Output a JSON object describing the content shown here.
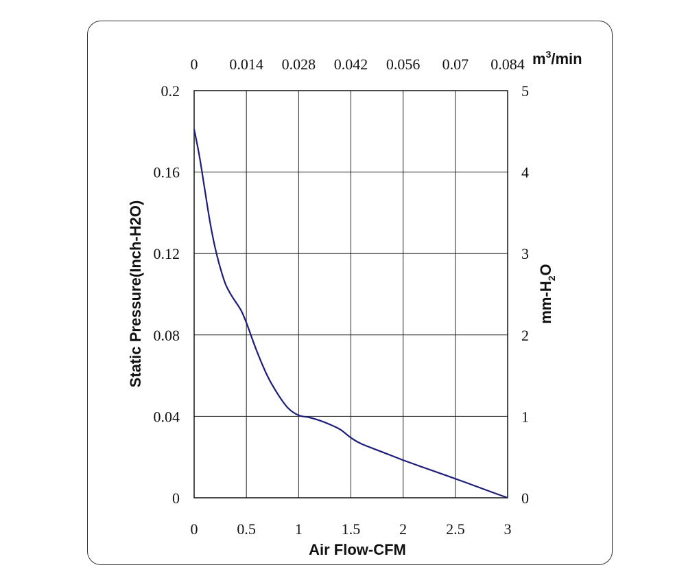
{
  "chart_data": {
    "type": "line",
    "xlabel": "Air Flow-CFM",
    "ylabel": "Static Pressure(Inch-H2O)",
    "xlim": [
      0,
      3
    ],
    "ylim": [
      0,
      0.2
    ],
    "xticks": [
      "0",
      "0.5",
      "1",
      "1.5",
      "2",
      "2.5",
      "3"
    ],
    "yticks": [
      "0",
      "0.04",
      "0.08",
      "0.12",
      "0.16",
      "0.2"
    ],
    "x2label_base": "m",
    "x2label_sup": "3",
    "x2label_rest": "/min",
    "x2lim": [
      0,
      0.084
    ],
    "x2ticks": [
      "0",
      "0.014",
      "0.028",
      "0.042",
      "0.056",
      "0.07",
      "0.084"
    ],
    "y2label_base": "mm-H",
    "y2label_sub": "2",
    "y2label_rest": "O",
    "y2lim": [
      0,
      5
    ],
    "y2ticks": [
      "0",
      "1",
      "2",
      "3",
      "4",
      "5"
    ],
    "grid": true,
    "series": [
      {
        "color": "#1c1c7a",
        "x": [
          0,
          0.05,
          0.1,
          0.15,
          0.2,
          0.25,
          0.3,
          0.35,
          0.4,
          0.45,
          0.5,
          0.6,
          0.7,
          0.8,
          0.9,
          1.0,
          1.1,
          1.2,
          1.3,
          1.4,
          1.5,
          1.6,
          1.8,
          2.0,
          2.2,
          2.4,
          2.6,
          2.8,
          3.0
        ],
        "y": [
          0.181,
          0.168,
          0.152,
          0.136,
          0.123,
          0.113,
          0.105,
          0.1,
          0.096,
          0.092,
          0.086,
          0.072,
          0.06,
          0.051,
          0.044,
          0.0405,
          0.0395,
          0.038,
          0.036,
          0.0335,
          0.0295,
          0.0265,
          0.0225,
          0.0185,
          0.0148,
          0.0112,
          0.0075,
          0.0037,
          0.0
        ]
      }
    ]
  }
}
